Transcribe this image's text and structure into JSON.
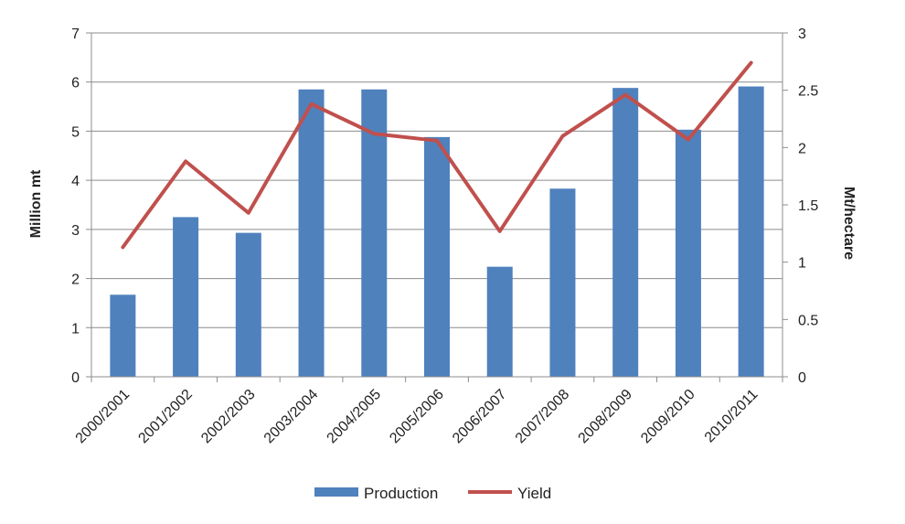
{
  "chart_data": {
    "type": "bar",
    "categories": [
      "2000/2001",
      "2001/2002",
      "2002/2003",
      "2003/2004",
      "2004/2005",
      "2005/2006",
      "2006/2007",
      "2007/2008",
      "2008/2009",
      "2009/2010",
      "2010/2011"
    ],
    "series": [
      {
        "name": "Production",
        "type": "bar",
        "axis": "left",
        "color": "#4f81bd",
        "values": [
          1.67,
          3.25,
          2.93,
          5.85,
          5.85,
          4.88,
          2.24,
          3.83,
          5.88,
          5.03,
          5.91
        ]
      },
      {
        "name": "Yield",
        "type": "line",
        "axis": "right",
        "color": "#c0504d",
        "values": [
          1.13,
          1.88,
          1.43,
          2.38,
          2.12,
          2.06,
          1.27,
          2.1,
          2.46,
          2.07,
          2.74
        ]
      }
    ],
    "ylabel": "Million mt",
    "y2label": "Mt/hectare",
    "ylim": [
      0,
      7
    ],
    "y2lim": [
      0,
      3
    ],
    "yticks": [
      "0",
      "1",
      "2",
      "3",
      "4",
      "5",
      "6",
      "7"
    ],
    "y2ticks": [
      "0",
      "0.5",
      "1",
      "1.5",
      "2",
      "2.5",
      "3"
    ],
    "grid": "horizontal",
    "legend": "bottom"
  }
}
